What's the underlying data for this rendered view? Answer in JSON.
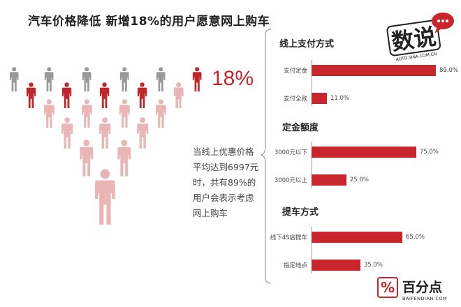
{
  "title": "汽车价格降低 新增18%的用户愿意网上购车",
  "highlight": {
    "percent_text": "18%",
    "color": "#c8252c"
  },
  "description": "当线上优惠价格平均达到6997元时，共有89%的用户会表示考虑网上购车",
  "people_legend": {
    "gray": "#999999",
    "red": "#c0272d",
    "pink": "#e9b5b5"
  },
  "chart_data": [
    {
      "type": "bar",
      "orientation": "horizontal",
      "title": "线上支付方式",
      "categories": [
        "支付定金",
        "支付全款"
      ],
      "values": [
        89.0,
        11.0
      ],
      "labels": [
        "89.0%",
        "11.0%"
      ],
      "xlim": [
        0,
        100
      ]
    },
    {
      "type": "bar",
      "orientation": "horizontal",
      "title": "定金额度",
      "categories": [
        "3000元以下",
        "3000元以上"
      ],
      "values": [
        75.0,
        25.0
      ],
      "labels": [
        "75.0%",
        "25.0%"
      ],
      "xlim": [
        0,
        100
      ]
    },
    {
      "type": "bar",
      "orientation": "horizontal",
      "title": "提车方式",
      "categories": [
        "线下4S店提车",
        "指定地点"
      ],
      "values": [
        65.0,
        35.0
      ],
      "labels": [
        "65.0%",
        "35.0%"
      ],
      "xlim": [
        0,
        100
      ]
    }
  ],
  "logo": {
    "text": "数说",
    "sub": "AUTO.SINA.COM.CN",
    "icon": "speech-bubble-icon"
  },
  "brand": {
    "icon": "percent-icon",
    "icon_glyph": "%",
    "name": "百分点",
    "url": "BAIFENDIAN.COM"
  },
  "bar_color": "#c8252c"
}
